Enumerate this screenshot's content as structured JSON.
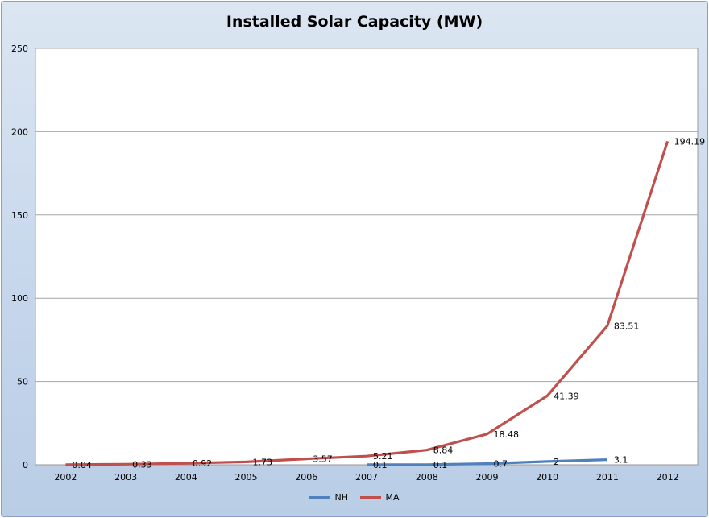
{
  "chart_data": {
    "type": "line",
    "title": "Installed Solar Capacity (MW)",
    "xlabel": "",
    "ylabel": "",
    "categories": [
      "2002",
      "2003",
      "2004",
      "2005",
      "2006",
      "2007",
      "2008",
      "2009",
      "2010",
      "2011",
      "2012"
    ],
    "ylim": [
      0,
      250
    ],
    "yticks": [
      0,
      50,
      100,
      150,
      200,
      250
    ],
    "grid": true,
    "legend_position": "bottom",
    "series": [
      {
        "name": "NH",
        "color": "#4f81bd",
        "values": [
          null,
          null,
          null,
          null,
          null,
          0.1,
          0.1,
          0.7,
          2,
          3.1,
          null
        ],
        "labels": [
          null,
          null,
          null,
          null,
          null,
          "0.1",
          "0.1",
          "0.7",
          "2",
          "3.1",
          null
        ]
      },
      {
        "name": "MA",
        "color": "#c0504d",
        "values": [
          0.04,
          0.33,
          0.92,
          1.73,
          3.57,
          5.21,
          8.84,
          18.48,
          41.39,
          83.51,
          194.19
        ],
        "labels": [
          "0.04",
          "0.33",
          "0.92",
          "1.73",
          "3.57",
          "5.21",
          "8.84",
          "18.48",
          "41.39",
          "83.51",
          "194.19"
        ]
      }
    ]
  }
}
